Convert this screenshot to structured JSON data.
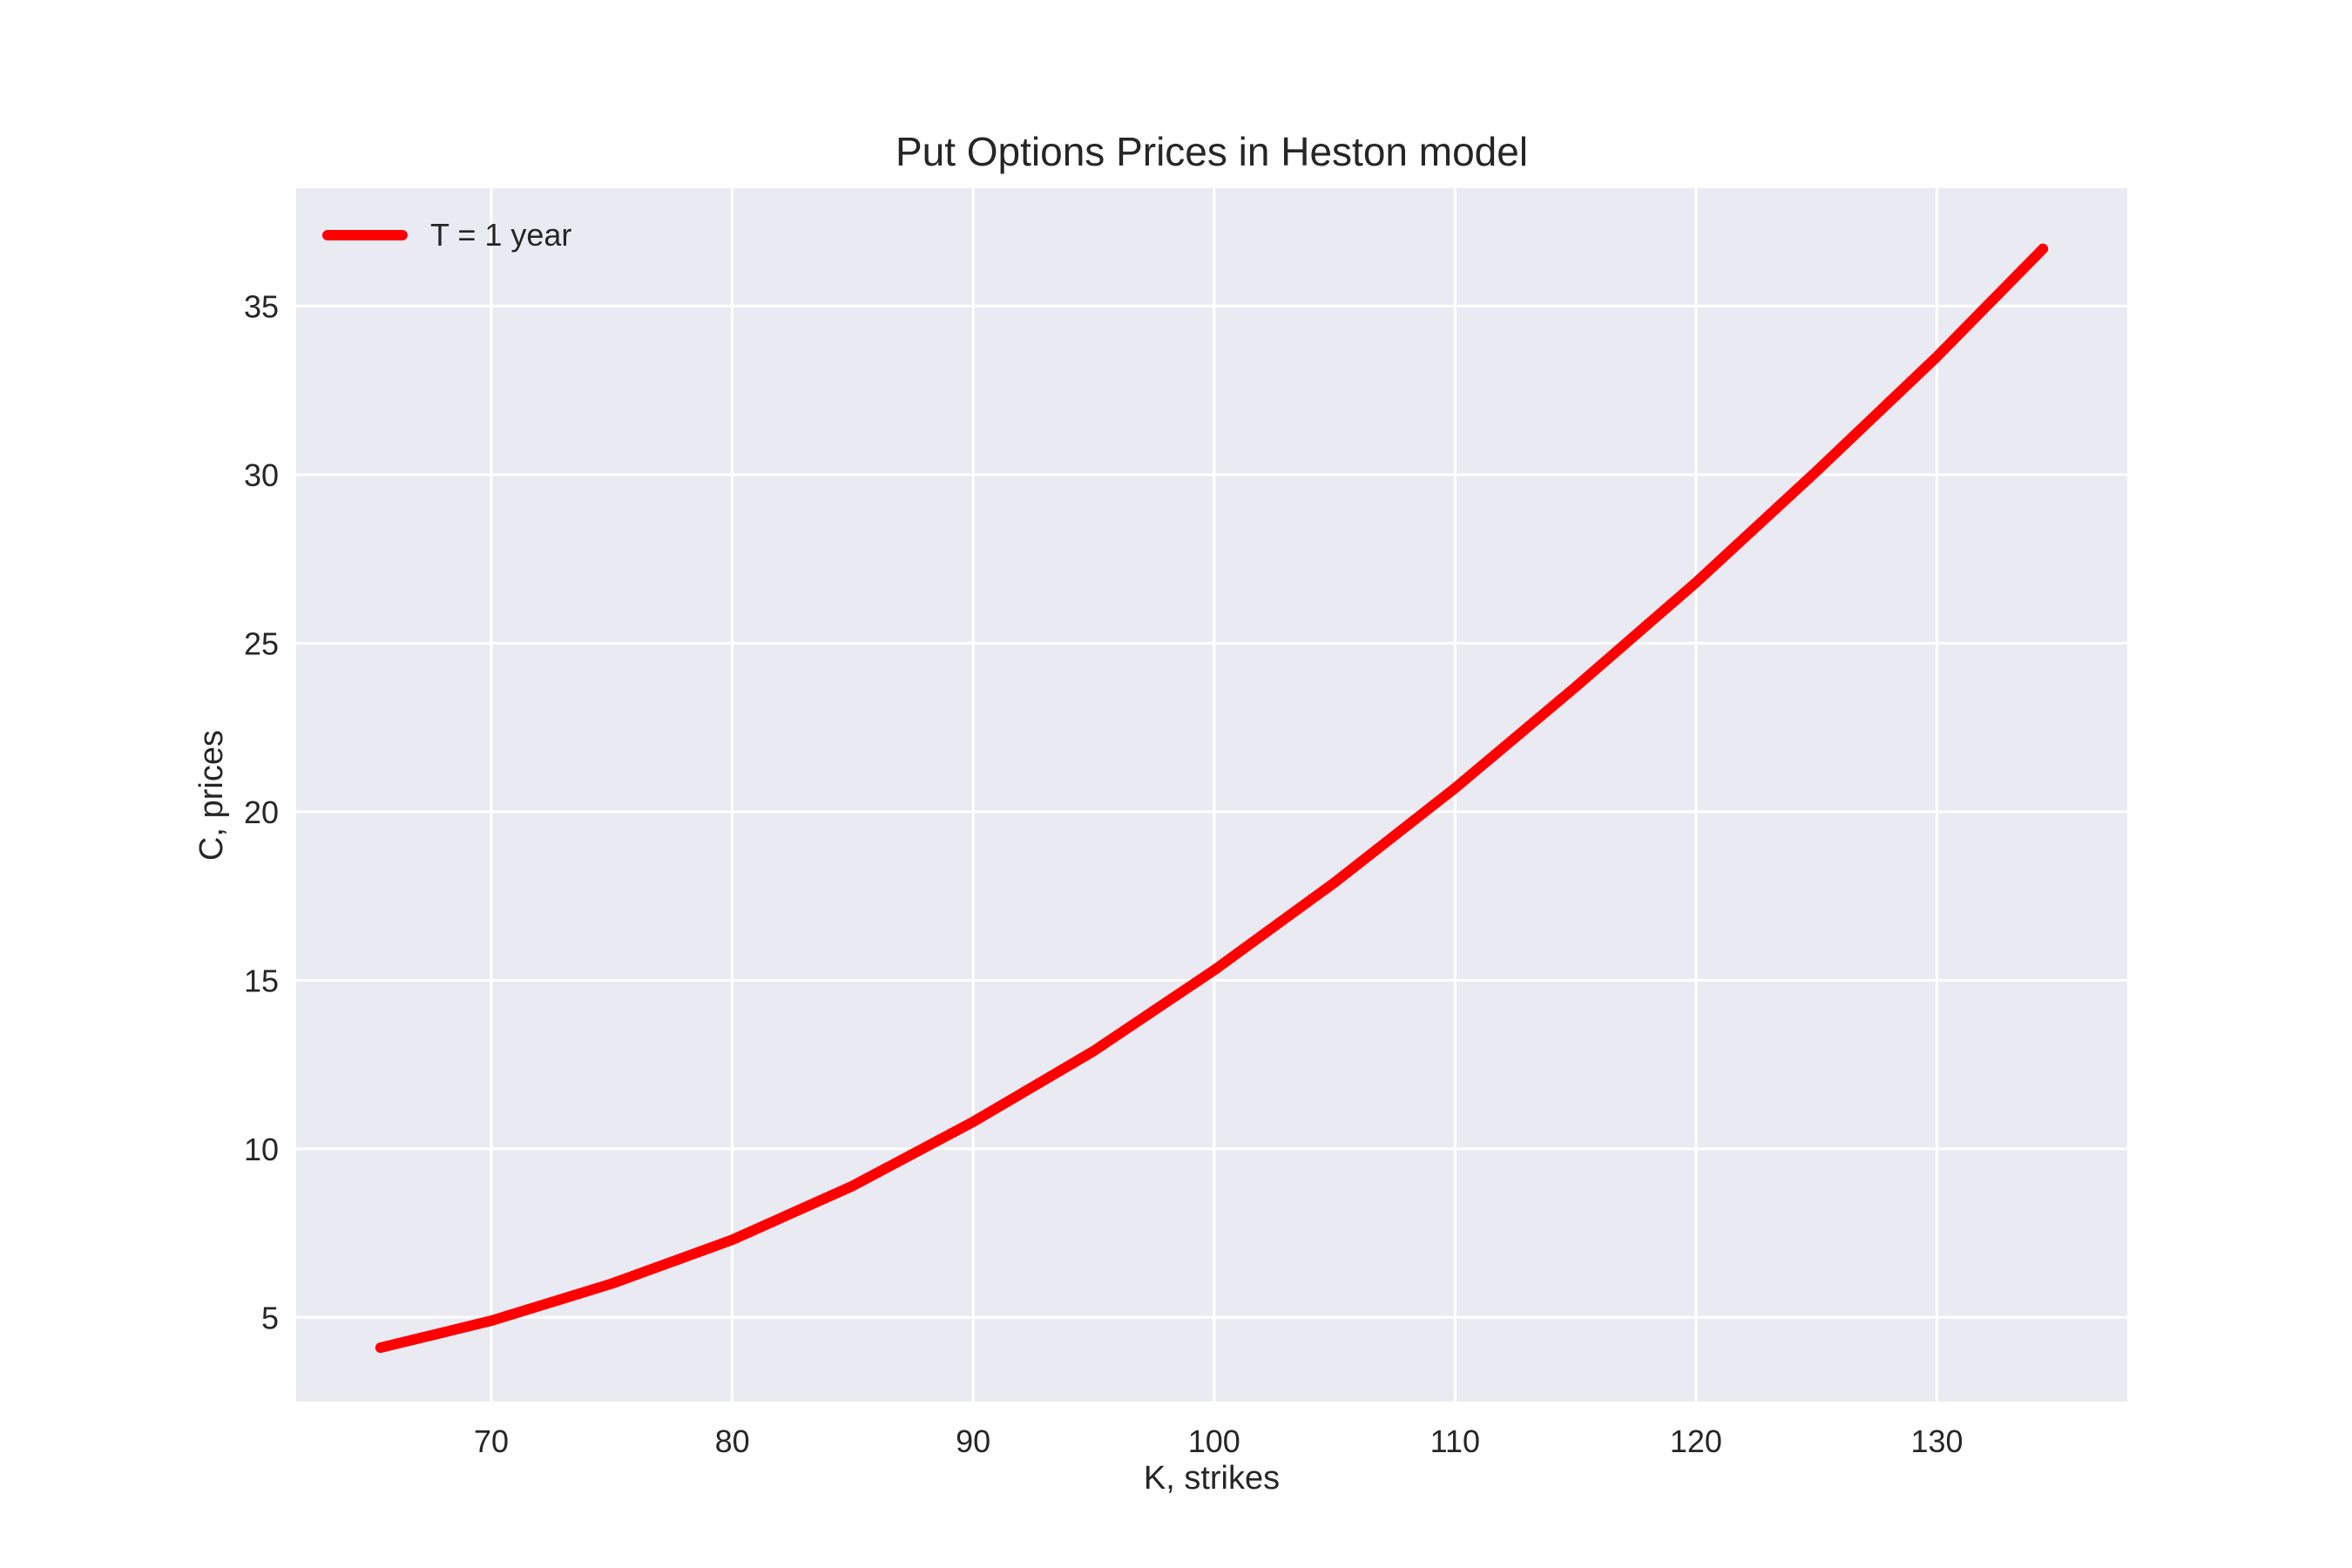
{
  "chart_data": {
    "type": "line",
    "title": "Put Options Prices in Heston model",
    "xlabel": "K, strikes",
    "ylabel": "C, prices",
    "xlim": [
      61.9,
      137.9
    ],
    "ylim": [
      2.5,
      38.5
    ],
    "xticks": [
      70,
      80,
      90,
      100,
      110,
      120,
      130
    ],
    "yticks": [
      5,
      10,
      15,
      20,
      25,
      30,
      35
    ],
    "grid": true,
    "legend_position": "top-left",
    "series": [
      {
        "name": "T = 1 year",
        "color": "#ff0000",
        "x": [
          65.4,
          70,
          75,
          80,
          85,
          90,
          95,
          100,
          105,
          110,
          115,
          120,
          125,
          130,
          134.4
        ],
        "y": [
          4.1,
          4.9,
          6.0,
          7.3,
          8.9,
          10.8,
          12.9,
          15.3,
          17.9,
          20.7,
          23.7,
          26.8,
          30.1,
          33.5,
          36.7
        ]
      }
    ]
  }
}
